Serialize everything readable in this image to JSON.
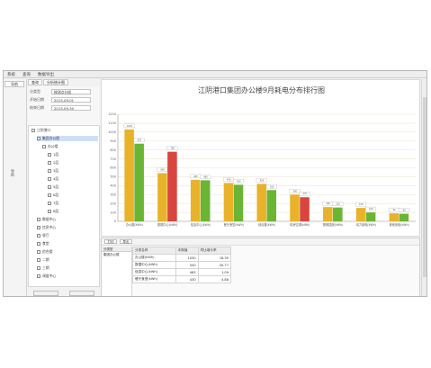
{
  "menu": [
    {
      "label": "系统"
    },
    {
      "label": "查询"
    },
    {
      "label": "数据导出"
    }
  ],
  "left_tab": "导航",
  "left_vertical_label": "导航",
  "top_tabs": [
    {
      "label": "查询"
    },
    {
      "label": "分析统计图"
    }
  ],
  "filter": {
    "rows": [
      {
        "label": "分类型",
        "value": "按测点分组"
      },
      {
        "label": "开始日期",
        "value": "2013-09-01"
      },
      {
        "label": "结束日期",
        "value": "2013-09-30"
      }
    ]
  },
  "tree": {
    "nodes": [
      {
        "label": "江阴港口",
        "level": 0
      },
      {
        "label": "集团办公楼",
        "level": 1,
        "selected": true
      },
      {
        "label": "办公楼",
        "level": 2
      },
      {
        "label": "1层",
        "level": 3
      },
      {
        "label": "2层",
        "level": 3
      },
      {
        "label": "3层",
        "level": 3
      },
      {
        "label": "4层",
        "level": 3
      },
      {
        "label": "5层",
        "level": 3
      },
      {
        "label": "6层",
        "level": 3
      },
      {
        "label": "7层",
        "level": 3
      },
      {
        "label": "8层",
        "level": 3
      },
      {
        "label": "数据中心",
        "level": 1
      },
      {
        "label": "信息中心",
        "level": 1
      },
      {
        "label": "餐厅",
        "level": 1
      },
      {
        "label": "食堂",
        "level": 1
      },
      {
        "label": "综合楼",
        "level": 1
      },
      {
        "label": "二期",
        "level": 1
      },
      {
        "label": "三期",
        "level": 1
      },
      {
        "label": "调度中心",
        "level": 1
      }
    ]
  },
  "chart_data": {
    "type": "bar",
    "title": "江阴港口集团办公楼9月耗电分布排行图",
    "legend": "top-right",
    "categories": [
      "办公楼(kWh)",
      "数据中心(kWh)",
      "信息中心(kWh)",
      "餐厅食堂(kWh)",
      "综合楼(kWh)",
      "机房空调(kWh)",
      "照明插座(kWh)",
      "动力用电(kWh)",
      "其他用电(kWh)"
    ],
    "series": [
      {
        "name": "",
        "values": [
          1030,
          540,
          465,
          430,
          420,
          300,
          160,
          150,
          90
        ],
        "color": "#e8b32a"
      },
      {
        "name": "",
        "values": [
          870,
          780,
          460,
          410,
          350,
          270,
          155,
          100,
          85
        ],
        "color": "#6ab534"
      }
    ],
    "highlight_bars": [
      {
        "series": 1,
        "index": 1,
        "color": "#d8453e"
      },
      {
        "series": 1,
        "index": 5,
        "color": "#d8453e"
      }
    ],
    "ylim": [
      0,
      1200
    ],
    "yticks": [
      0,
      100,
      200,
      300,
      400,
      500,
      600,
      700,
      800,
      900,
      1000,
      1100,
      1200
    ],
    "grid": true
  },
  "bottom": {
    "toolbar_buttons": [
      "打印",
      "导出"
    ],
    "grid1_header": "分类型",
    "grid1_rows": [
      "集团办公楼"
    ],
    "table_headers": [
      "分类名称",
      "本期值",
      "同比增长率"
    ],
    "table_rows": [
      [
        "办公楼(kWh)",
        "1030",
        "18.39"
      ],
      [
        "数据中心(kWh)",
        "540",
        "-30.77"
      ],
      [
        "信息中心(kWh)",
        "465",
        "1.09"
      ],
      [
        "餐厅食堂(kWh)",
        "430",
        "4.88"
      ]
    ]
  }
}
